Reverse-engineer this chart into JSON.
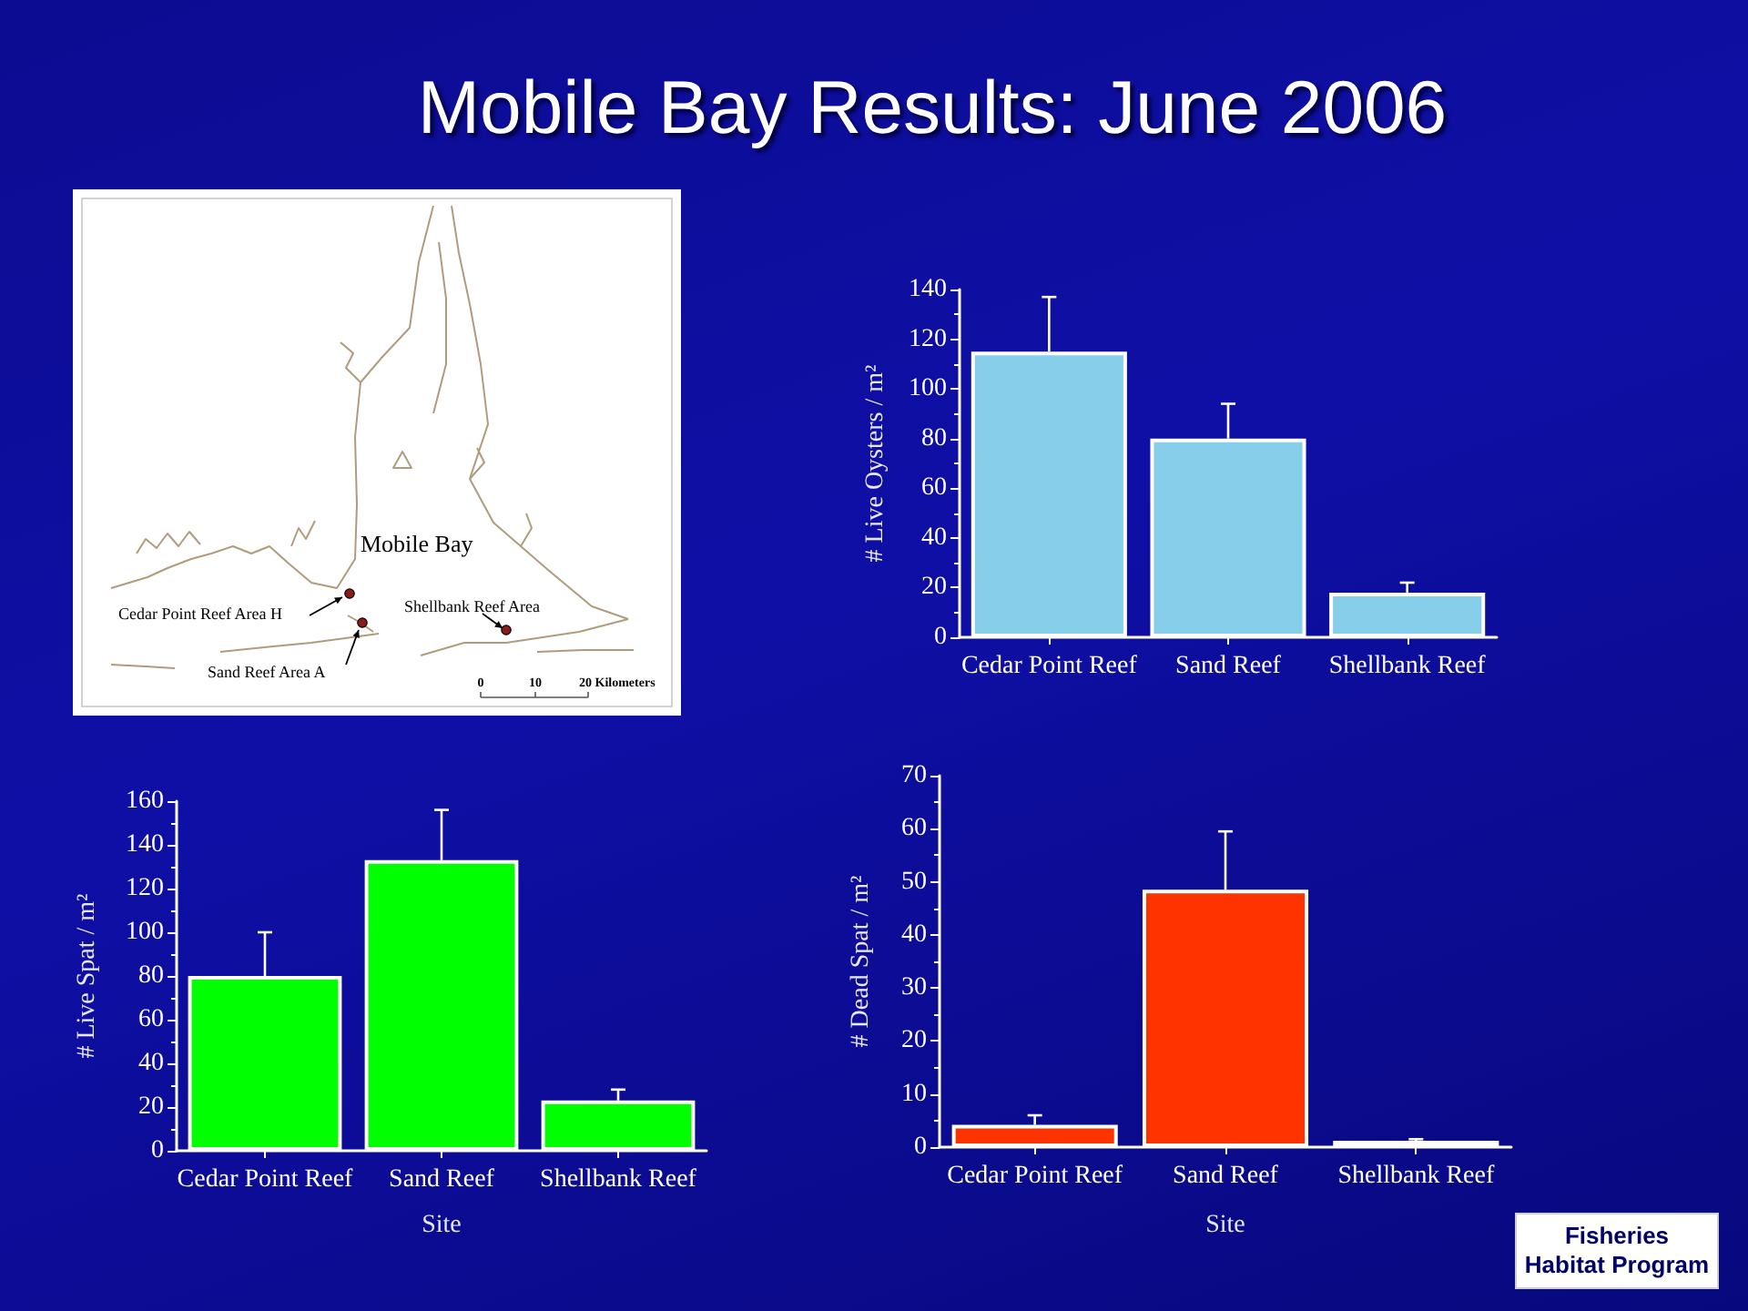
{
  "chart_data": [
    {
      "type": "other",
      "title": "Mobile Bay Results: June 2006",
      "annotations": [
        "Mobile Bay",
        "Cedar Point Reef Area H",
        "Shellbank Reef Area",
        "Sand Reef Area A",
        "0",
        "10",
        "20 Kilometers"
      ]
    },
    {
      "type": "bar",
      "ylabel": "# Live Oysters / m²",
      "categories": [
        "Cedar Point Reef",
        "Sand Reef",
        "Shellbank Reef"
      ],
      "values": [
        115,
        80,
        18
      ],
      "errors": [
        [
          115,
          137
        ],
        [
          80,
          94
        ],
        [
          18,
          22
        ]
      ],
      "color": "#87ceeb",
      "ylim": [
        0,
        140
      ],
      "yticks": [
        0,
        {
          "value": 10,
          "label": null
        },
        20,
        {
          "value": 30,
          "label": null
        },
        40,
        {
          "value": 50,
          "label": null
        },
        60,
        {
          "value": 70,
          "label": null
        },
        80,
        {
          "value": 90,
          "label": null
        },
        100,
        {
          "value": 110,
          "label": null
        },
        120,
        {
          "value": 130,
          "label": null
        },
        140
      ]
    },
    {
      "type": "bar",
      "xlabel": "Site",
      "ylabel": "# Live Spat / m²",
      "categories": [
        "Cedar Point Reef",
        "Sand Reef",
        "Shellbank Reef"
      ],
      "values": [
        80,
        133,
        23
      ],
      "errors": [
        [
          80,
          100
        ],
        [
          133,
          156
        ],
        [
          23,
          28
        ]
      ],
      "color": "#00ff00",
      "ylim": [
        0,
        160
      ],
      "yticks": [
        0,
        {
          "value": 10,
          "label": null
        },
        20,
        {
          "value": 30,
          "label": null
        },
        40,
        {
          "value": 50,
          "label": null
        },
        60,
        {
          "value": 70,
          "label": null
        },
        80,
        {
          "value": 90,
          "label": null
        },
        100,
        {
          "value": 110,
          "label": null
        },
        120,
        {
          "value": 130,
          "label": null
        },
        140,
        {
          "value": 150,
          "label": null
        },
        160
      ]
    },
    {
      "type": "bar",
      "xlabel": "Site",
      "ylabel": "# Dead Spat / m²",
      "categories": [
        "Cedar Point Reef",
        "Sand Reef",
        "Shellbank Reef"
      ],
      "values": [
        4.2,
        48.5,
        1.2
      ],
      "errors": [
        [
          4.2,
          6
        ],
        [
          48.5,
          59.5
        ],
        [
          1.2,
          1.5
        ]
      ],
      "color": "#ff3300",
      "ylim": [
        0,
        70
      ],
      "yticks": [
        0,
        {
          "value": 5,
          "label": null
        },
        10,
        {
          "value": 15,
          "label": null
        },
        20,
        {
          "value": 25,
          "label": null
        },
        30,
        {
          "value": 35,
          "label": null
        },
        40,
        {
          "value": 45,
          "label": null
        },
        50,
        {
          "value": 55,
          "label": null
        },
        60,
        {
          "value": 65,
          "label": null
        },
        70
      ],
      "annotations": [
        "Fisheries Habitat Program"
      ]
    }
  ]
}
